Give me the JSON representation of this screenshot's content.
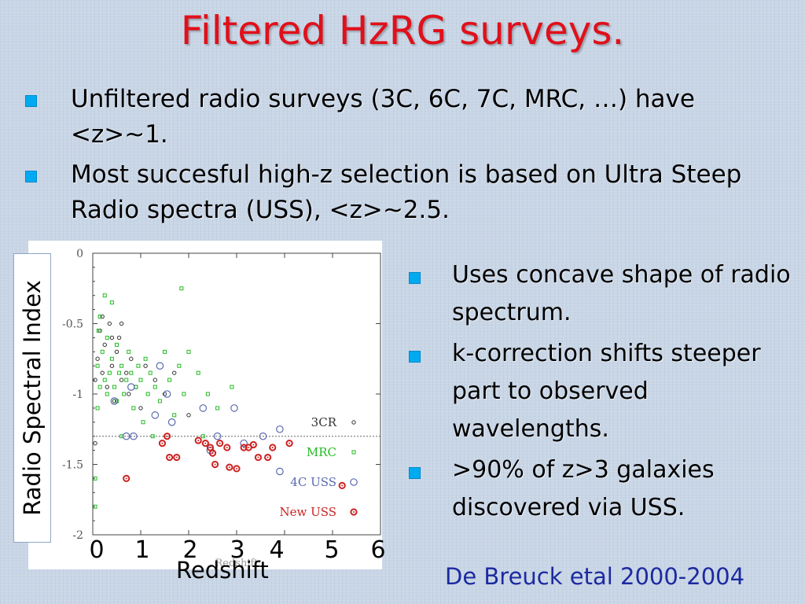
{
  "title": "Filtered HzRG surveys.",
  "bullets_top": [
    "Unfiltered radio surveys (3C, 6C, 7C, MRC, …) have <z>~1.",
    "Most succesful high-z selection is based on Ultra Steep Radio spectra (USS), <z>~2.5."
  ],
  "bullets_right": [
    "Uses concave shape of radio spectrum.",
    "k-correction shifts steeper part to observed wavelengths.",
    ">90% of z>3 galaxies discovered via USS."
  ],
  "credit": "De Breuck etal 2000-2004",
  "big_ylabel": "Radio Spectral Index",
  "big_xlabel": "Redshift",
  "big_xticks": [
    "0",
    "1",
    "2",
    "3",
    "4",
    "5",
    "6"
  ],
  "chart_data": {
    "type": "scatter",
    "xlabel": "Redshift",
    "ylabel": "",
    "xlim": [
      0,
      6
    ],
    "ylim": [
      0,
      -2
    ],
    "y_ticks": [
      "-2",
      "-1.5",
      "-1",
      "-0.5",
      "0"
    ],
    "reference_line": -1.3,
    "legend_position": "lower-right",
    "series": [
      {
        "name": "3CR",
        "color": "#333333",
        "marker": "circle-small",
        "points": [
          [
            0.05,
            -0.9
          ],
          [
            0.1,
            -0.75
          ],
          [
            0.15,
            -0.55
          ],
          [
            0.2,
            -0.85
          ],
          [
            0.25,
            -0.65
          ],
          [
            0.3,
            -0.95
          ],
          [
            0.35,
            -0.5
          ],
          [
            0.4,
            -0.8
          ],
          [
            0.45,
            -1.05
          ],
          [
            0.5,
            -0.7
          ],
          [
            0.55,
            -0.6
          ],
          [
            0.6,
            -0.9
          ],
          [
            0.7,
            -0.85
          ],
          [
            0.75,
            -1.0
          ],
          [
            0.8,
            -0.75
          ],
          [
            0.9,
            -0.95
          ],
          [
            1.0,
            -1.1
          ],
          [
            1.1,
            -0.8
          ],
          [
            1.3,
            -0.9
          ],
          [
            1.5,
            -1.0
          ],
          [
            1.7,
            -0.85
          ],
          [
            2.0,
            -1.15
          ],
          [
            0.05,
            -1.35
          ],
          [
            0.2,
            -0.45
          ],
          [
            0.4,
            -0.6
          ],
          [
            0.6,
            -0.5
          ]
        ]
      },
      {
        "name": "MRC",
        "color": "#22bb22",
        "marker": "square-small",
        "points": [
          [
            0.05,
            -1.8
          ],
          [
            0.05,
            -1.6
          ],
          [
            0.1,
            -1.1
          ],
          [
            0.1,
            -0.8
          ],
          [
            0.12,
            -0.55
          ],
          [
            0.15,
            -0.95
          ],
          [
            0.2,
            -0.7
          ],
          [
            0.25,
            -0.9
          ],
          [
            0.3,
            -1.0
          ],
          [
            0.3,
            -0.6
          ],
          [
            0.35,
            -0.85
          ],
          [
            0.4,
            -0.75
          ],
          [
            0.45,
            -0.95
          ],
          [
            0.5,
            -1.05
          ],
          [
            0.5,
            -0.65
          ],
          [
            0.55,
            -0.85
          ],
          [
            0.6,
            -0.8
          ],
          [
            0.65,
            -1.0
          ],
          [
            0.7,
            -0.9
          ],
          [
            0.75,
            -0.7
          ],
          [
            0.8,
            -0.85
          ],
          [
            0.85,
            -1.1
          ],
          [
            0.9,
            -0.95
          ],
          [
            0.95,
            -0.8
          ],
          [
            1.0,
            -0.9
          ],
          [
            1.05,
            -1.2
          ],
          [
            1.1,
            -0.75
          ],
          [
            1.15,
            -1.0
          ],
          [
            1.2,
            -0.85
          ],
          [
            1.3,
            -0.95
          ],
          [
            1.4,
            -1.05
          ],
          [
            1.5,
            -0.7
          ],
          [
            1.6,
            -0.9
          ],
          [
            1.7,
            -1.15
          ],
          [
            1.8,
            -0.8
          ],
          [
            1.9,
            -1.0
          ],
          [
            2.0,
            -0.7
          ],
          [
            2.2,
            -0.85
          ],
          [
            2.4,
            -1.0
          ],
          [
            2.6,
            -1.1
          ],
          [
            2.9,
            -0.95
          ],
          [
            0.15,
            -0.45
          ],
          [
            0.4,
            -0.35
          ],
          [
            0.25,
            -0.3
          ],
          [
            1.85,
            -0.25
          ],
          [
            0.6,
            -1.3
          ],
          [
            1.25,
            -1.3
          ],
          [
            2.3,
            -1.3
          ]
        ]
      },
      {
        "name": "4C USS",
        "color": "#5a6ab0",
        "marker": "circle",
        "points": [
          [
            0.7,
            -1.3
          ],
          [
            0.85,
            -1.3
          ],
          [
            0.45,
            -1.05
          ],
          [
            0.8,
            -0.95
          ],
          [
            1.3,
            -1.15
          ],
          [
            1.55,
            -1.0
          ],
          [
            1.65,
            -1.2
          ],
          [
            2.3,
            -1.1
          ],
          [
            2.6,
            -1.3
          ],
          [
            2.95,
            -1.1
          ],
          [
            3.15,
            -1.35
          ],
          [
            3.55,
            -1.3
          ],
          [
            3.9,
            -1.55
          ],
          [
            3.9,
            -1.25
          ],
          [
            1.4,
            -0.8
          ],
          [
            2.45,
            -1.4
          ]
        ]
      },
      {
        "name": "New USS",
        "color": "#cc2222",
        "marker": "circle-dot",
        "points": [
          [
            0.7,
            -1.6
          ],
          [
            1.45,
            -1.35
          ],
          [
            1.55,
            -1.3
          ],
          [
            1.6,
            -1.45
          ],
          [
            1.75,
            -1.45
          ],
          [
            2.2,
            -1.33
          ],
          [
            2.35,
            -1.35
          ],
          [
            2.45,
            -1.38
          ],
          [
            2.5,
            -1.42
          ],
          [
            2.65,
            -1.35
          ],
          [
            2.8,
            -1.38
          ],
          [
            2.55,
            -1.5
          ],
          [
            2.85,
            -1.52
          ],
          [
            3.0,
            -1.53
          ],
          [
            3.15,
            -1.38
          ],
          [
            3.25,
            -1.38
          ],
          [
            3.35,
            -1.36
          ],
          [
            3.45,
            -1.45
          ],
          [
            3.65,
            -1.45
          ],
          [
            3.75,
            -1.38
          ],
          [
            4.1,
            -1.35
          ],
          [
            5.2,
            -1.65
          ]
        ]
      }
    ]
  }
}
